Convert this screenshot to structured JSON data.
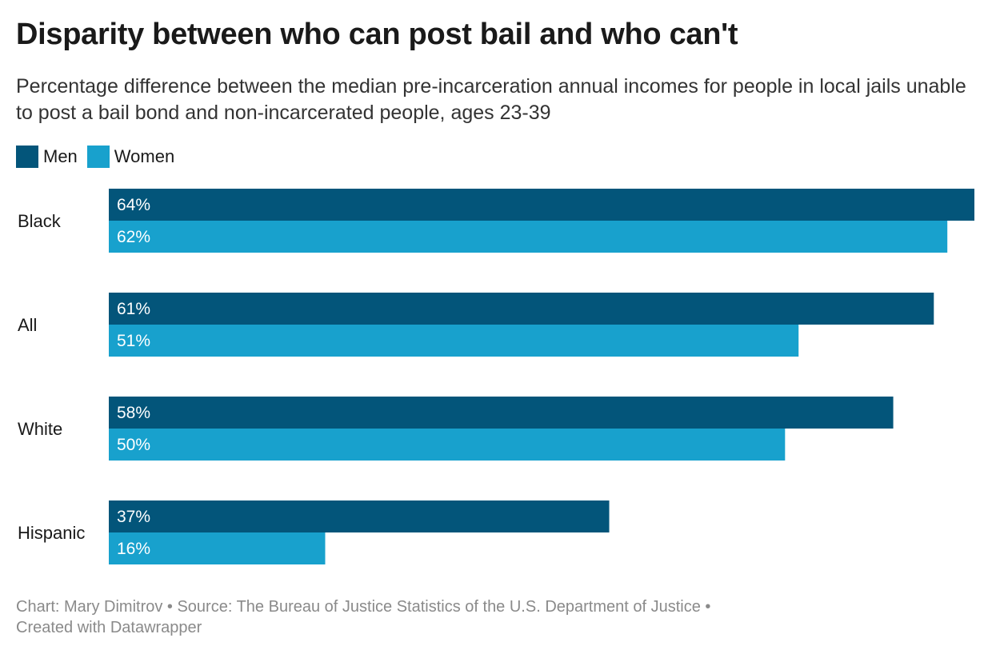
{
  "title": "Disparity between who can post bail and who can't",
  "subtitle": "Percentage difference between the median pre-incarceration annual incomes for people in local jails unable to post a bail bond and non-incarcerated people, ages 23-39",
  "legend": [
    {
      "label": "Men",
      "color": "#03557a"
    },
    {
      "label": "Women",
      "color": "#18a1cd"
    }
  ],
  "footer": {
    "line1": "Chart: Mary Dimitrov • Source: The Bureau of Justice Statistics of the U.S. Department of Justice •",
    "line2": "Created with Datawrapper"
  },
  "chart_data": {
    "type": "bar",
    "orientation": "horizontal",
    "categories": [
      "Black",
      "All",
      "White",
      "Hispanic"
    ],
    "series": [
      {
        "name": "Men",
        "color": "#03557a",
        "values": [
          64,
          61,
          58,
          37
        ],
        "labels": [
          "64%",
          "61%",
          "58%",
          "37%"
        ]
      },
      {
        "name": "Women",
        "color": "#18a1cd",
        "values": [
          62,
          51,
          50,
          16
        ],
        "labels": [
          "62%",
          "51%",
          "50%",
          "16%"
        ]
      }
    ],
    "xlim": [
      0,
      64
    ],
    "grid": false,
    "legend_position": "top-left"
  }
}
